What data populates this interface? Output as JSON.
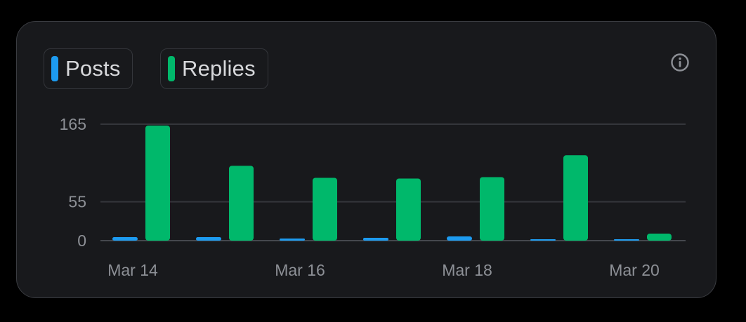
{
  "legend": {
    "posts_label": "Posts",
    "replies_label": "Replies"
  },
  "icons": {
    "info": "info-circle-icon"
  },
  "colors": {
    "posts": "#1d9bf0",
    "replies": "#00b86b",
    "background": "#18191c",
    "grid": "#3a3c41"
  },
  "chart_data": {
    "type": "bar",
    "categories": [
      "Mar 14",
      "Mar 15",
      "Mar 16",
      "Mar 17",
      "Mar 18",
      "Mar 19",
      "Mar 20"
    ],
    "x_tick_labels": [
      "Mar 14",
      "Mar 16",
      "Mar 18",
      "Mar 20"
    ],
    "series": [
      {
        "name": "Posts",
        "color": "#1d9bf0",
        "values": [
          5,
          5,
          3,
          4,
          6,
          2,
          1
        ]
      },
      {
        "name": "Replies",
        "color": "#00b86b",
        "values": [
          163,
          106,
          89,
          88,
          90,
          121,
          10
        ]
      }
    ],
    "y_ticks": [
      0,
      55,
      165
    ],
    "ylim": [
      0,
      165
    ],
    "grid": true,
    "legend_position": "top-left",
    "title": "",
    "xlabel": "",
    "ylabel": ""
  }
}
